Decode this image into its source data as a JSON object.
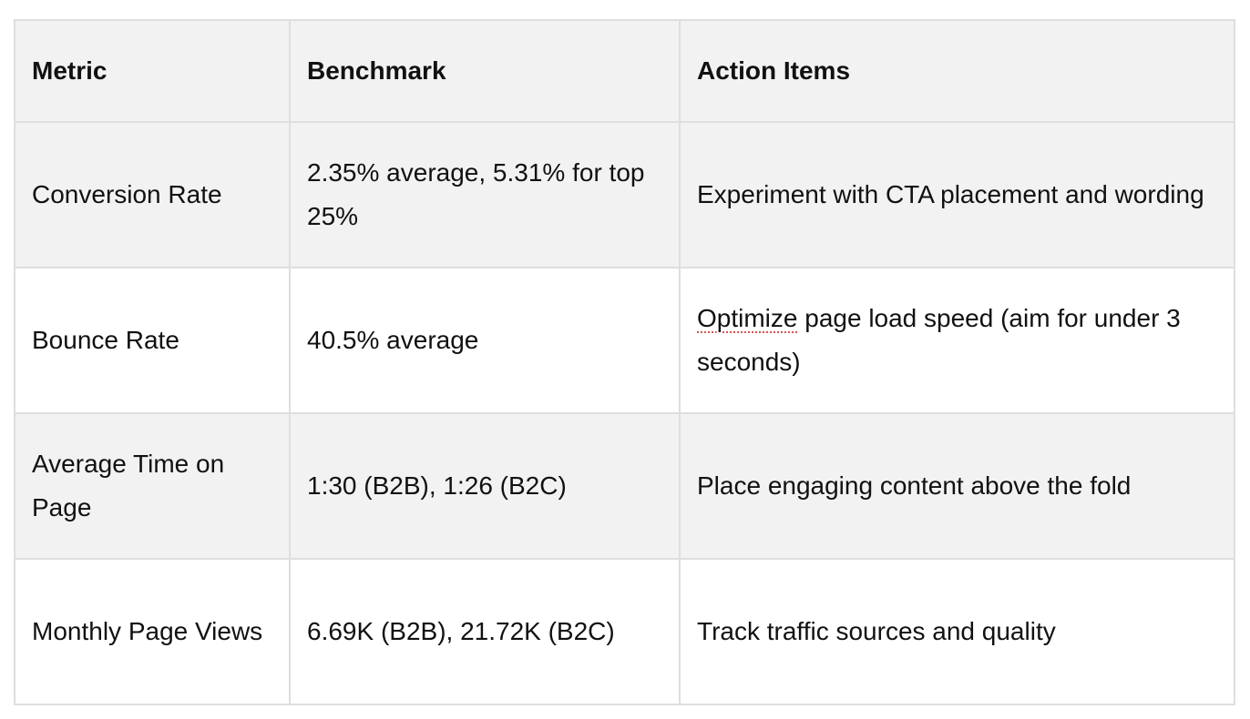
{
  "table": {
    "headers": [
      "Metric",
      "Benchmark",
      "Action Items"
    ],
    "rows": [
      {
        "metric": "Conversion Rate",
        "benchmark": "2.35% average, 5.31% for top 25%",
        "action": "Experiment with CTA placement and wording"
      },
      {
        "metric": "Bounce Rate",
        "benchmark": "40.5% average",
        "action_spell_word": "Optimize",
        "action_rest": " page load speed (aim for under 3 seconds)"
      },
      {
        "metric": "Average Time on Page",
        "benchmark": "1:30 (B2B), 1:26 (B2C)",
        "action": "Place engaging content above the fold"
      },
      {
        "metric": "Monthly Page Views",
        "benchmark": "6.69K (B2B), 21.72K (B2C)",
        "action": "Track traffic sources and quality"
      }
    ]
  }
}
